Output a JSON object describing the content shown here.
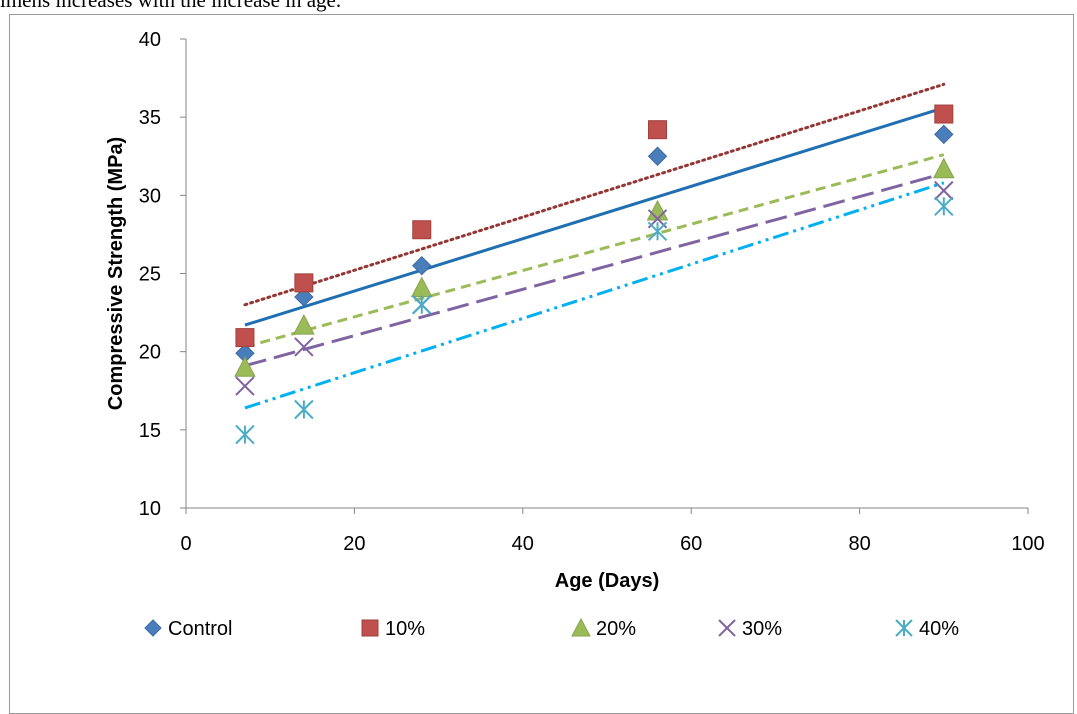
{
  "page": {
    "top_text": "imens increases with the increase in age."
  },
  "chart_data": {
    "type": "scatter",
    "xlabel": "Age (Days)",
    "ylabel": "Compressive Strength (MPa)",
    "xlim": [
      0,
      100
    ],
    "ylim": [
      10,
      40
    ],
    "x_ticks": [
      0,
      20,
      40,
      60,
      80,
      100
    ],
    "y_ticks": [
      10,
      15,
      20,
      25,
      30,
      35,
      40
    ],
    "grid": false,
    "legend_position": "bottom",
    "x": [
      7,
      14,
      28,
      56,
      90
    ],
    "series": [
      {
        "name": "Control",
        "marker": "diamond",
        "color": "#4a7ebb",
        "values": [
          19.9,
          23.5,
          25.5,
          32.5,
          33.9
        ],
        "trendline": {
          "style": "solid",
          "color": "#1f6fb2",
          "y_start": 21.7,
          "y_end": 35.6
        }
      },
      {
        "name": "10%",
        "marker": "square",
        "color": "#c0504d",
        "values": [
          20.9,
          24.4,
          27.8,
          34.2,
          35.2
        ],
        "trendline": {
          "style": "dotted",
          "color": "#943634",
          "y_start": 23.0,
          "y_end": 37.1
        }
      },
      {
        "name": "20%",
        "marker": "triangle",
        "color": "#9bbb59",
        "values": [
          19.0,
          21.7,
          24.1,
          29.0,
          31.7
        ],
        "trendline": {
          "style": "dashed",
          "color": "#9bbb59",
          "y_start": 20.3,
          "y_end": 32.6
        }
      },
      {
        "name": "30%",
        "marker": "x",
        "color": "#8064a2",
        "values": [
          17.8,
          20.3,
          23.0,
          28.5,
          30.3
        ],
        "trendline": {
          "style": "longdash",
          "color": "#8064a2",
          "y_start": 19.1,
          "y_end": 31.4
        }
      },
      {
        "name": "40%",
        "marker": "star",
        "color": "#4bacc6",
        "values": [
          14.7,
          16.3,
          23.0,
          27.7,
          29.3
        ],
        "trendline": {
          "style": "dashdotdot",
          "color": "#00b0f0",
          "y_start": 16.4,
          "y_end": 30.8
        }
      }
    ]
  }
}
